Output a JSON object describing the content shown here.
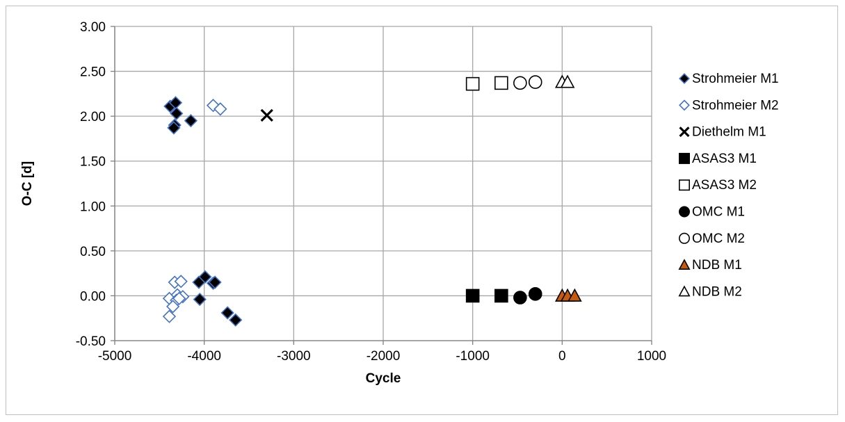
{
  "chart_data": {
    "type": "scatter",
    "xlabel": "Cycle",
    "ylabel": "O-C [d]",
    "xlim": [
      -5000,
      1000
    ],
    "ylim": [
      -0.5,
      3.0
    ],
    "x_ticks": [
      -5000,
      -4000,
      -3000,
      -2000,
      -1000,
      0,
      1000
    ],
    "x_tick_labels": [
      "-5000",
      "-4000",
      "-3000",
      "-2000",
      "-1000",
      "0",
      "1000"
    ],
    "y_ticks": [
      -0.5,
      0,
      0.5,
      1.0,
      1.5,
      2.0,
      2.5,
      3.0
    ],
    "y_tick_labels": [
      "-0.50",
      "0.00",
      "0.50",
      "1.00",
      "1.50",
      "2.00",
      "2.50",
      "3.00"
    ],
    "grid": true,
    "legend_position": "right",
    "series": [
      {
        "name": "Strohmeier M1",
        "marker": "diamond",
        "fill": "#000000",
        "stroke": "#4472c4",
        "points": [
          [
            -4380,
            2.11
          ],
          [
            -4320,
            2.15
          ],
          [
            -4310,
            2.03
          ],
          [
            -4330,
            1.9
          ],
          [
            -4340,
            1.87
          ],
          [
            -4150,
            1.95
          ],
          [
            -4060,
            0.15
          ],
          [
            -4050,
            -0.04
          ],
          [
            -3990,
            0.21
          ],
          [
            -3900,
            0.14
          ],
          [
            -3880,
            0.15
          ],
          [
            -3740,
            -0.19
          ],
          [
            -3650,
            -0.27
          ]
        ]
      },
      {
        "name": "Strohmeier M2",
        "marker": "diamond",
        "fill": "#ffffff",
        "stroke": "#4472c4",
        "points": [
          [
            -3900,
            2.12
          ],
          [
            -3820,
            2.08
          ],
          [
            -4390,
            -0.03
          ],
          [
            -4330,
            0.15
          ],
          [
            -4260,
            0.16
          ],
          [
            -4300,
            0.01
          ],
          [
            -4240,
            -0.01
          ],
          [
            -4310,
            -0.05
          ],
          [
            -4350,
            -0.12
          ],
          [
            -4390,
            -0.23
          ],
          [
            -4280,
            -0.03
          ]
        ]
      },
      {
        "name": "Diethelm M1",
        "marker": "x",
        "fill": "none",
        "stroke": "#000000",
        "points": [
          [
            -3300,
            2.01
          ]
        ]
      },
      {
        "name": "ASAS3 M1",
        "marker": "square",
        "fill": "#000000",
        "stroke": "#000000",
        "points": [
          [
            -1000,
            0.0
          ],
          [
            -680,
            0.0
          ]
        ]
      },
      {
        "name": "ASAS3 M2",
        "marker": "square",
        "fill": "#ffffff",
        "stroke": "#000000",
        "points": [
          [
            -1000,
            2.36
          ],
          [
            -680,
            2.37
          ]
        ]
      },
      {
        "name": "OMC M1",
        "marker": "circle",
        "fill": "#000000",
        "stroke": "#000000",
        "points": [
          [
            -470,
            -0.02
          ],
          [
            -300,
            0.02
          ]
        ]
      },
      {
        "name": "OMC M2",
        "marker": "circle",
        "fill": "#ffffff",
        "stroke": "#000000",
        "points": [
          [
            -470,
            2.37
          ],
          [
            -300,
            2.38
          ]
        ]
      },
      {
        "name": "NDB M1",
        "marker": "triangle",
        "fill": "#c55a11",
        "stroke": "#000000",
        "points": [
          [
            0,
            0.0
          ],
          [
            60,
            0.0
          ],
          [
            140,
            0.0
          ]
        ]
      },
      {
        "name": "NDB M2",
        "marker": "triangle",
        "fill": "#ffffff",
        "stroke": "#000000",
        "points": [
          [
            0,
            2.38
          ],
          [
            60,
            2.38
          ]
        ]
      }
    ]
  }
}
